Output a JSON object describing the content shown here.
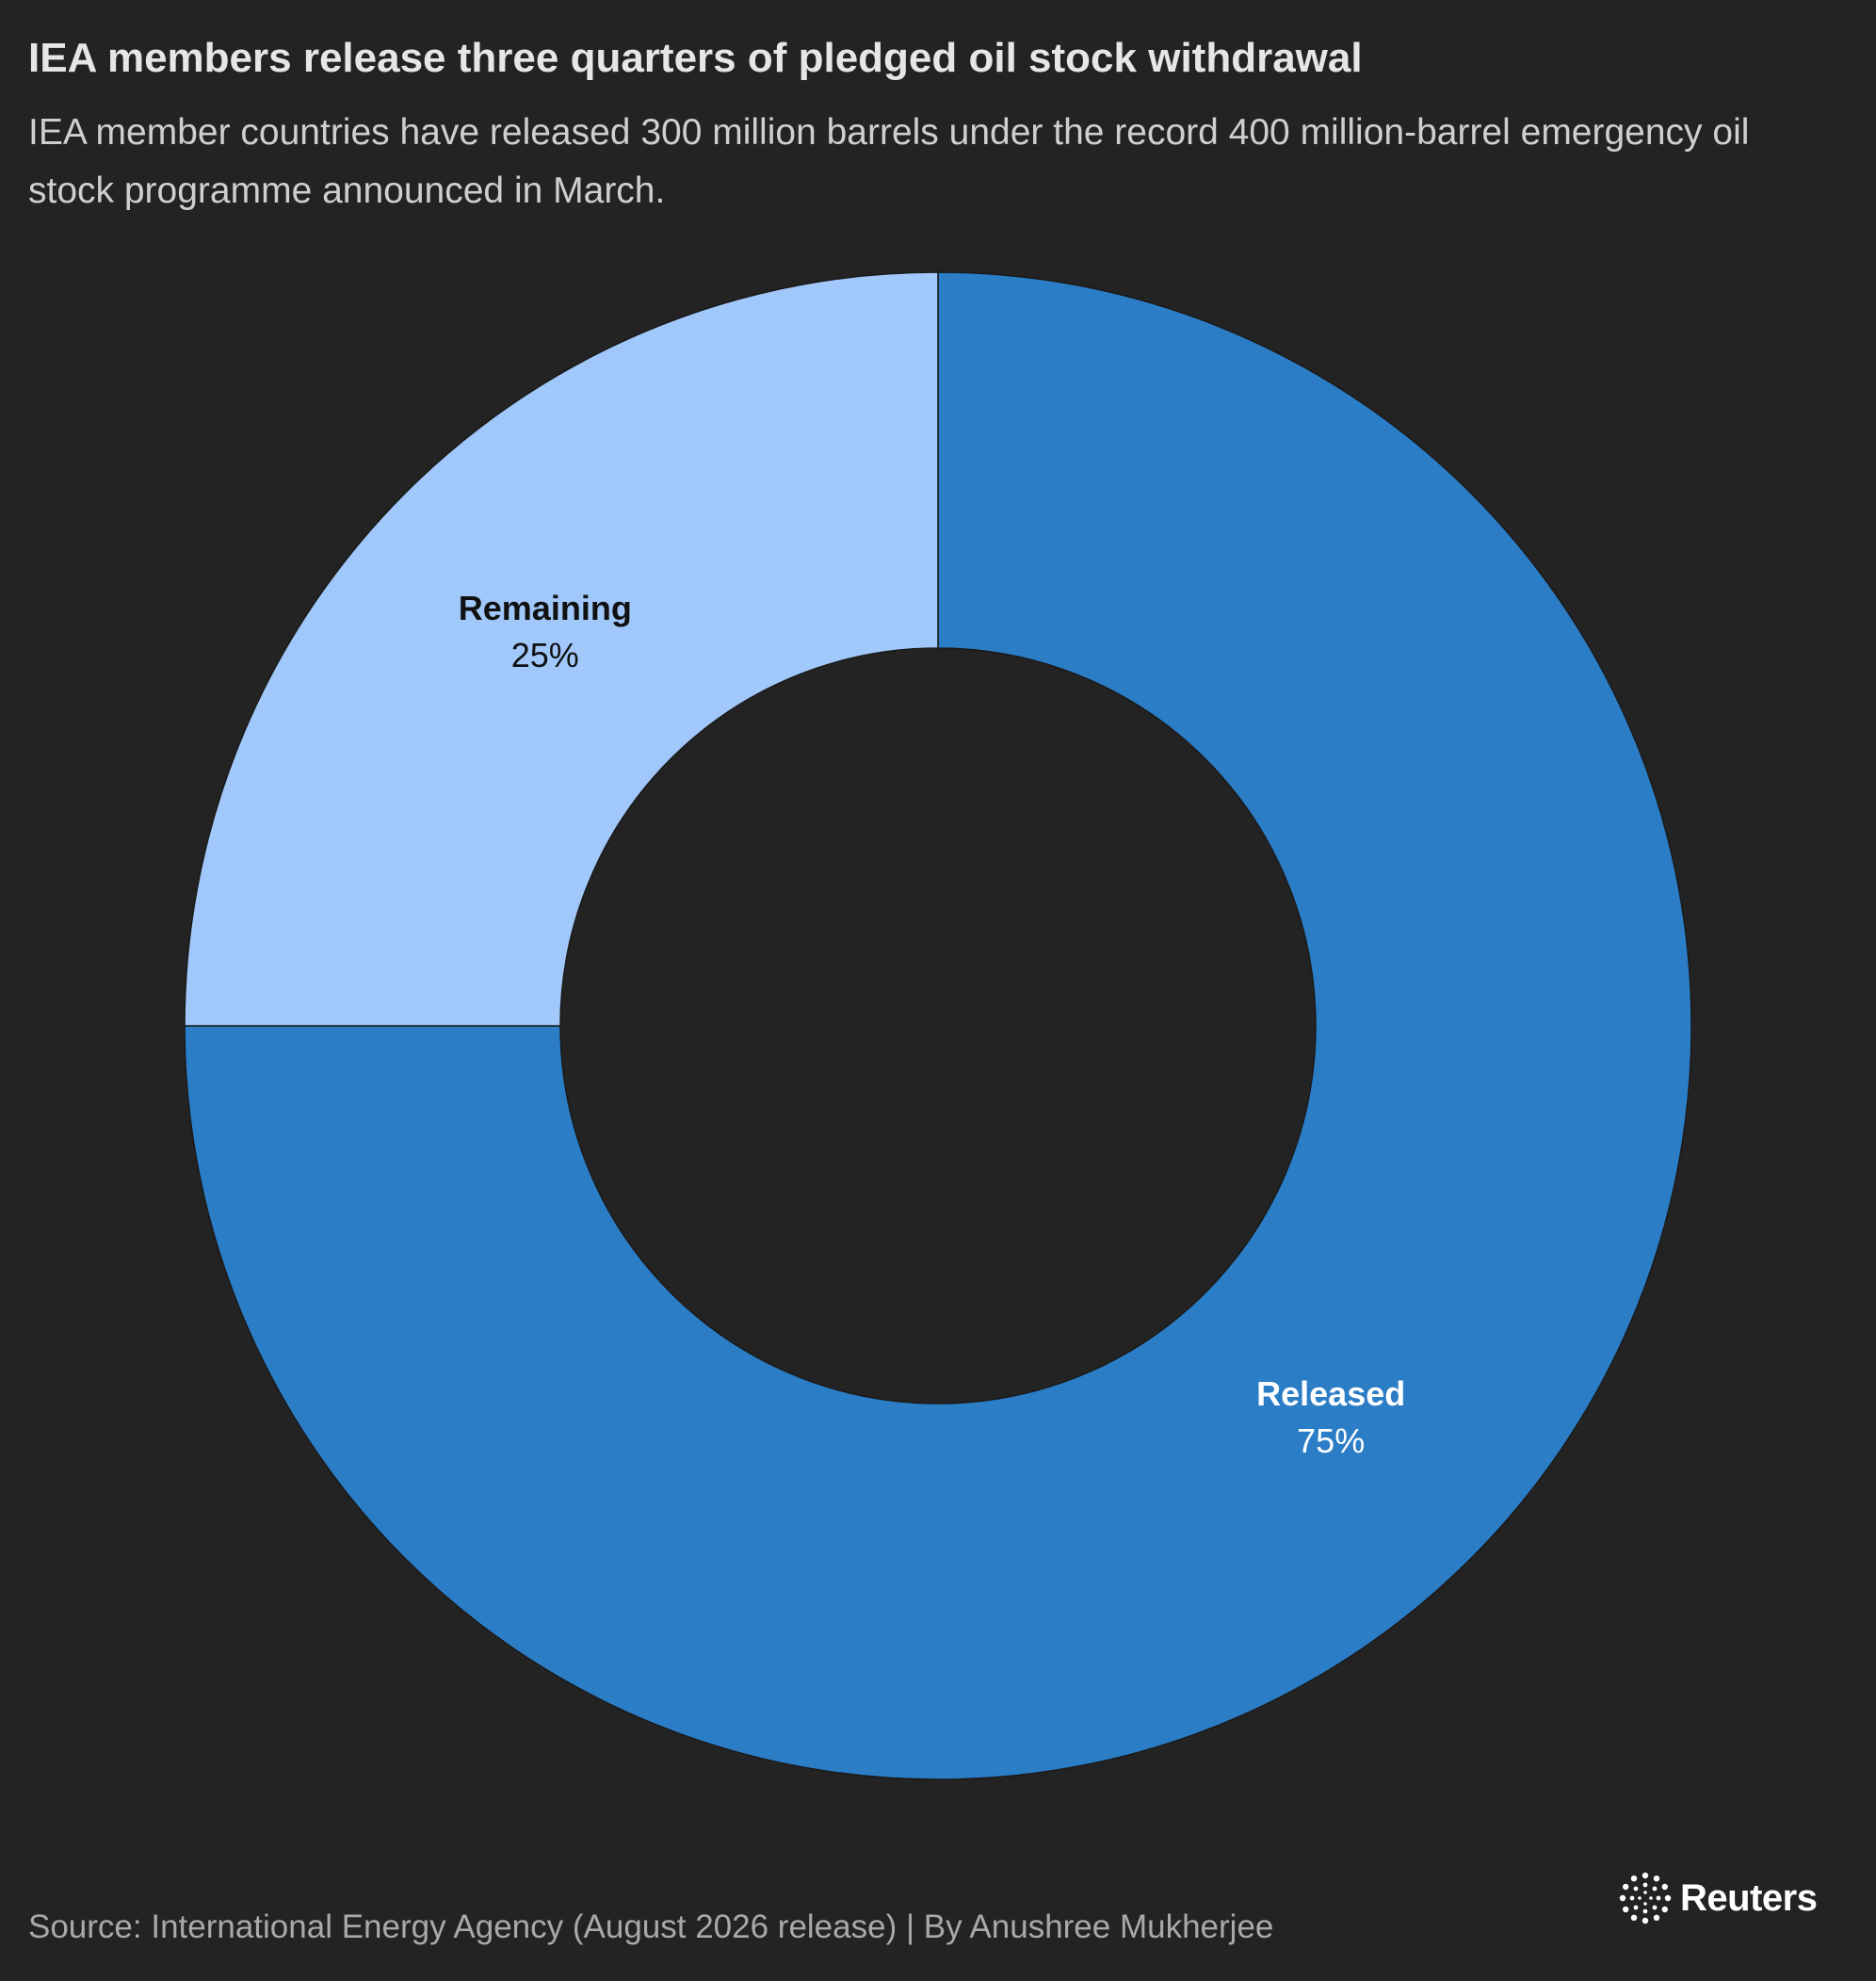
{
  "header": {
    "title": "IEA members release three quarters of pledged oil stock withdrawal",
    "subtitle": "IEA member countries have released 300 million barrels under the record 400 million-barrel emergency oil stock programme announced in March."
  },
  "footer": {
    "source": "Source: International Energy Agency (August 2026 release) | By Anushree Mukherjee",
    "logo_text": "Reuters"
  },
  "colors": {
    "background": "#232323",
    "released": "#2b7dc6",
    "remaining": "#a0c8fa",
    "label_on_dark_slice": "#ffffff",
    "label_on_light_slice": "#111111"
  },
  "chart_data": {
    "type": "pie",
    "donut": true,
    "title": "IEA members release three quarters of pledged oil stock withdrawal",
    "legend": "none",
    "slices": [
      {
        "label": "Released",
        "value": 75,
        "display": "75%",
        "color": "#2b7dc6"
      },
      {
        "label": "Remaining",
        "value": 25,
        "display": "25%",
        "color": "#a0c8fa"
      }
    ]
  }
}
